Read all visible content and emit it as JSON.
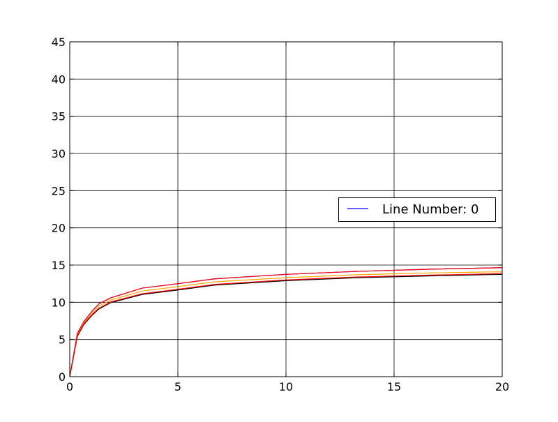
{
  "chart_data": {
    "type": "line",
    "title": "",
    "xlabel": "",
    "ylabel": "",
    "xlim": [
      0,
      20
    ],
    "ylim": [
      0,
      45
    ],
    "xticks": [
      0,
      5,
      10,
      15,
      20
    ],
    "yticks": [
      0,
      5,
      10,
      15,
      20,
      25,
      30,
      35,
      40,
      45
    ],
    "xtick_labels": [
      "0",
      "5",
      "10",
      "15",
      "20"
    ],
    "ytick_labels": [
      "0",
      "5",
      "10",
      "15",
      "20",
      "25",
      "30",
      "35",
      "40",
      "45"
    ],
    "grid": true,
    "legend": {
      "placement": "center-right",
      "entries": [
        {
          "label": "Line Number: 0",
          "color": "#0000ff"
        }
      ]
    },
    "series": [
      {
        "color": "#0000ff",
        "points": [
          [
            0,
            0
          ],
          [
            0.35,
            5.8
          ],
          [
            0.65,
            7.4
          ],
          [
            1.0,
            8.7
          ],
          [
            1.35,
            9.8
          ],
          [
            1.9,
            10.6
          ],
          [
            3.35,
            11.9
          ],
          [
            5,
            12.5
          ],
          [
            6.7,
            13.15
          ],
          [
            10,
            13.75
          ],
          [
            13.3,
            14.15
          ],
          [
            16.7,
            14.45
          ],
          [
            20,
            14.65
          ]
        ]
      },
      {
        "color": "#ff0000",
        "points": [
          [
            0,
            0
          ],
          [
            0.35,
            5.8
          ],
          [
            0.65,
            7.4
          ],
          [
            1.0,
            8.7
          ],
          [
            1.35,
            9.8
          ],
          [
            1.9,
            10.6
          ],
          [
            3.35,
            11.9
          ],
          [
            5,
            12.5
          ],
          [
            6.7,
            13.15
          ],
          [
            10,
            13.75
          ],
          [
            13.3,
            14.15
          ],
          [
            16.7,
            14.45
          ],
          [
            20,
            14.65
          ]
        ]
      },
      {
        "color": "#ffa500",
        "points": [
          [
            0,
            0
          ],
          [
            0.35,
            5.6
          ],
          [
            0.65,
            7.2
          ],
          [
            1.0,
            8.4
          ],
          [
            1.35,
            9.5
          ],
          [
            1.9,
            10.3
          ],
          [
            3.35,
            11.5
          ],
          [
            5,
            12.1
          ],
          [
            6.7,
            12.75
          ],
          [
            10,
            13.3
          ],
          [
            13.3,
            13.7
          ],
          [
            16.7,
            13.95
          ],
          [
            20,
            14.1
          ]
        ]
      },
      {
        "color": "#000000",
        "points": [
          [
            0,
            0
          ],
          [
            0.35,
            5.4
          ],
          [
            0.65,
            7.0
          ],
          [
            1.0,
            8.15
          ],
          [
            1.35,
            9.1
          ],
          [
            1.9,
            9.95
          ],
          [
            3.35,
            11.05
          ],
          [
            5,
            11.65
          ],
          [
            6.7,
            12.3
          ],
          [
            10,
            12.9
          ],
          [
            13.3,
            13.3
          ],
          [
            16.7,
            13.55
          ],
          [
            20,
            13.75
          ]
        ]
      },
      {
        "color": "#ff0000",
        "points": [
          [
            0,
            0
          ],
          [
            0.35,
            5.5
          ],
          [
            0.65,
            7.1
          ],
          [
            1.0,
            8.25
          ],
          [
            1.35,
            9.2
          ],
          [
            1.9,
            10.05
          ],
          [
            3.35,
            11.15
          ],
          [
            5,
            11.75
          ],
          [
            6.7,
            12.4
          ],
          [
            10,
            13.0
          ],
          [
            13.3,
            13.4
          ],
          [
            16.7,
            13.65
          ],
          [
            20,
            13.85
          ]
        ]
      }
    ]
  }
}
